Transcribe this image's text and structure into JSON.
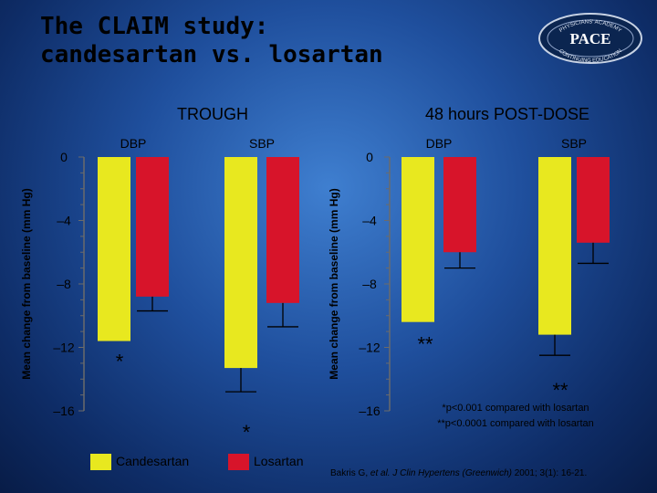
{
  "title": {
    "line1": "The CLAIM study:",
    "line2": "candesartan vs. losartan"
  },
  "logo": {
    "text": "PACE",
    "arc_top": "PHYSICIANS' ACADEMY",
    "arc_bottom": "CONTINUING EDUCATION"
  },
  "chart_data": {
    "type": "bar",
    "ylabel": "Mean change from baseline (mm Hg)",
    "yticks": [
      "0",
      "–4",
      "–8",
      "–12",
      "–16"
    ],
    "ylim": [
      -16,
      0
    ],
    "legend": {
      "position": "bottom-left",
      "items": [
        {
          "name": "Candesartan",
          "color": "#e8e81f"
        },
        {
          "name": "Losartan",
          "color": "#d7142a"
        }
      ]
    },
    "panels": [
      {
        "title": "TROUGH",
        "groups": [
          {
            "label": "DBP",
            "bars": [
              {
                "series": "Candesartan",
                "value": -11.6,
                "error": 0,
                "marker": "*"
              },
              {
                "series": "Losartan",
                "value": -8.8,
                "error": 0.9,
                "marker": ""
              }
            ]
          },
          {
            "label": "SBP",
            "bars": [
              {
                "series": "Candesartan",
                "value": -13.3,
                "error": 1.5,
                "marker": "*"
              },
              {
                "series": "Losartan",
                "value": -9.2,
                "error": 1.5,
                "marker": ""
              }
            ]
          }
        ]
      },
      {
        "title": "48 hours POST-DOSE",
        "groups": [
          {
            "label": "DBP",
            "bars": [
              {
                "series": "Candesartan",
                "value": -10.4,
                "error": 0,
                "marker": "**"
              },
              {
                "series": "Losartan",
                "value": -6.0,
                "error": 1.0,
                "marker": ""
              }
            ]
          },
          {
            "label": "SBP",
            "bars": [
              {
                "series": "Candesartan",
                "value": -11.2,
                "error": 1.3,
                "marker": "**"
              },
              {
                "series": "Losartan",
                "value": -5.4,
                "error": 1.3,
                "marker": ""
              }
            ]
          }
        ]
      }
    ],
    "footnotes": [
      "*p<0.001 compared with losartan",
      "**p<0.0001 compared with losartan"
    ]
  },
  "reference": {
    "authors": "Bakris G, ",
    "etal": "et al.",
    "journal": " J Clin Hypertens (Greenwich)",
    "rest": " 2001; 3(1): 16-21."
  }
}
